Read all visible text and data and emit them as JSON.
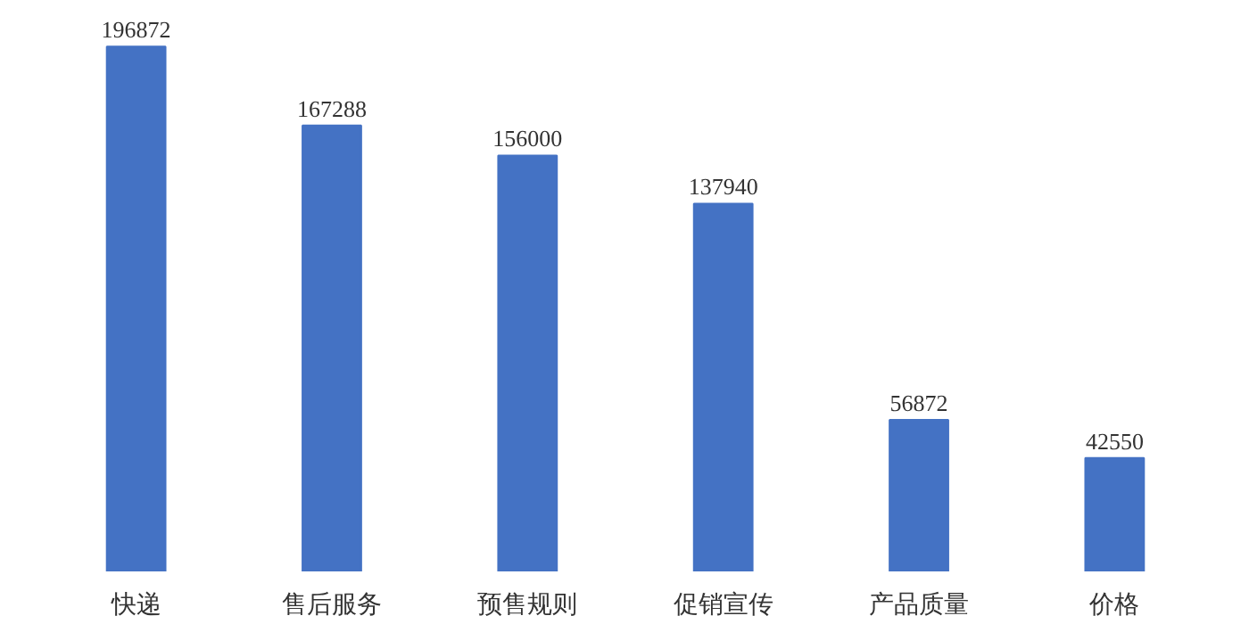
{
  "chart_data": {
    "type": "bar",
    "categories": [
      "快递",
      "售后服务",
      "预售规则",
      "促销宣传",
      "产品质量",
      "价格"
    ],
    "values": [
      196872,
      167288,
      156000,
      137940,
      56872,
      42550
    ],
    "color": "#4472c4",
    "data_labels": true,
    "grid": false
  }
}
